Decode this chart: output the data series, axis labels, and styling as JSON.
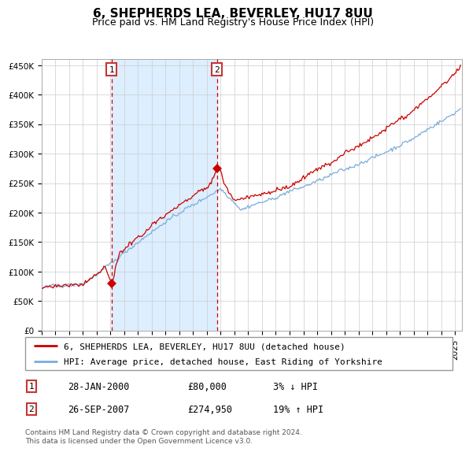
{
  "title": "6, SHEPHERDS LEA, BEVERLEY, HU17 8UU",
  "subtitle": "Price paid vs. HM Land Registry's House Price Index (HPI)",
  "ylim": [
    0,
    460000
  ],
  "xlim_start": 1995.0,
  "xlim_end": 2025.5,
  "yticks": [
    0,
    50000,
    100000,
    150000,
    200000,
    250000,
    300000,
    350000,
    400000,
    450000
  ],
  "ytick_labels": [
    "£0",
    "£50K",
    "£100K",
    "£150K",
    "£200K",
    "£250K",
    "£300K",
    "£350K",
    "£400K",
    "£450K"
  ],
  "sale1_date": 2000.07,
  "sale1_price": 80000,
  "sale2_date": 2007.73,
  "sale2_price": 274950,
  "line_color_red": "#cc0000",
  "line_color_blue": "#7aaddc",
  "bg_color": "#ddeeff",
  "grid_color": "#cccccc",
  "legend_red": "6, SHEPHERDS LEA, BEVERLEY, HU17 8UU (detached house)",
  "legend_blue": "HPI: Average price, detached house, East Riding of Yorkshire",
  "table_row1": [
    "1",
    "28-JAN-2000",
    "£80,000",
    "3% ↓ HPI"
  ],
  "table_row2": [
    "2",
    "26-SEP-2007",
    "£274,950",
    "19% ↑ HPI"
  ],
  "footer": "Contains HM Land Registry data © Crown copyright and database right 2024.\nThis data is licensed under the Open Government Licence v3.0.",
  "title_fontsize": 11,
  "subtitle_fontsize": 9,
  "tick_fontsize": 7.5,
  "legend_fontsize": 8,
  "table_fontsize": 8.5
}
